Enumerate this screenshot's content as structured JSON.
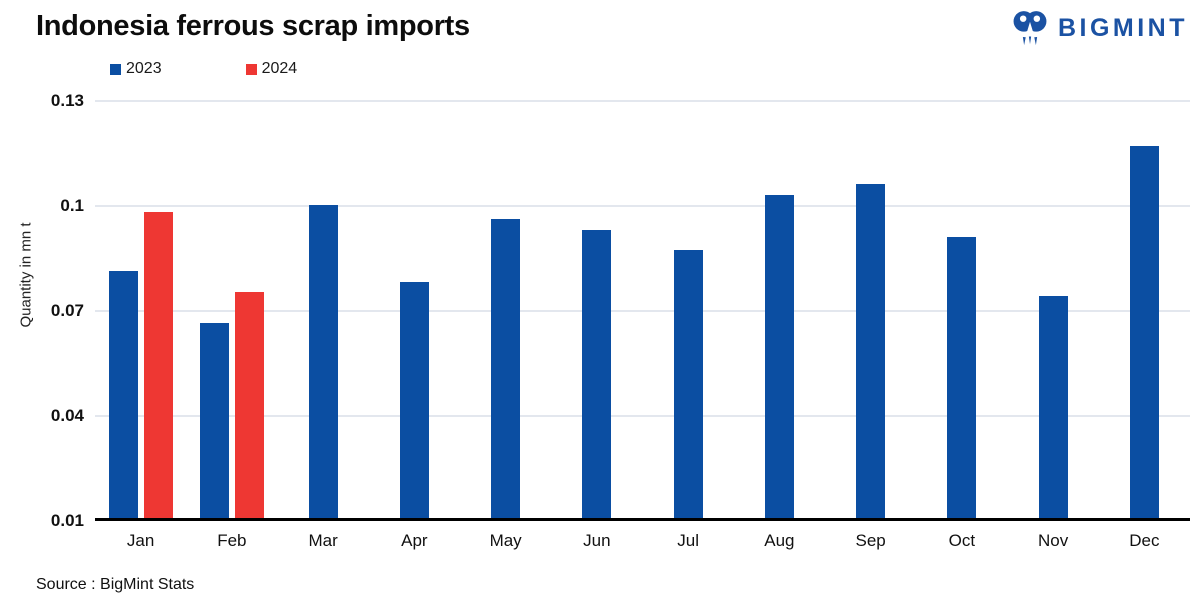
{
  "logo": {
    "text": "BIGMINT",
    "color": "#1b52a3"
  },
  "colors": {
    "series_2023": "#0b4ea2",
    "series_2024": "#ee3733",
    "gridline": "#e3e7ee",
    "axis_line": "#000000"
  },
  "chart_data": {
    "type": "bar",
    "title": "Indonesia ferrous scrap imports",
    "ylabel": "Quantity in mn t",
    "xlabel": "",
    "categories": [
      "Jan",
      "Feb",
      "Mar",
      "Apr",
      "May",
      "Jun",
      "Jul",
      "Aug",
      "Sep",
      "Oct",
      "Nov",
      "Dec"
    ],
    "series": [
      {
        "name": "2023",
        "color": "#0b4ea2",
        "values": [
          0.081,
          0.066,
          0.1,
          0.078,
          0.096,
          0.093,
          0.087,
          0.103,
          0.106,
          0.091,
          0.074,
          0.117
        ]
      },
      {
        "name": "2024",
        "color": "#ee3733",
        "values": [
          0.098,
          0.075,
          null,
          null,
          null,
          null,
          null,
          null,
          null,
          null,
          null,
          null
        ]
      }
    ],
    "ylim": [
      0.01,
      0.13
    ],
    "yticks": [
      0.01,
      0.04,
      0.07,
      0.1,
      0.13
    ],
    "ytick_labels": [
      "0.01",
      "0.04",
      "0.07",
      "0.1",
      "0.13"
    ],
    "grid": true,
    "legend_position": "top-left",
    "source": "Source : BigMint Stats"
  }
}
